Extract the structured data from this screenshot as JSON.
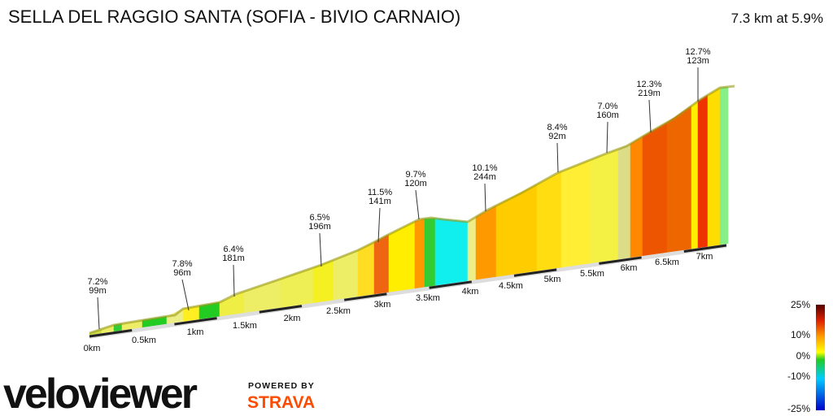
{
  "header": {
    "title": "SELLA DEL RAGGIO SANTA (SOFIA - BIVIO CARNAIO)",
    "summary": "7.3 km at 5.9%"
  },
  "annotations": [
    {
      "gradient": "7.2%",
      "length": "99m"
    },
    {
      "gradient": "7.8%",
      "length": "96m"
    },
    {
      "gradient": "6.4%",
      "length": "181m"
    },
    {
      "gradient": "6.5%",
      "length": "196m"
    },
    {
      "gradient": "11.5%",
      "length": "141m"
    },
    {
      "gradient": "9.7%",
      "length": "120m"
    },
    {
      "gradient": "10.1%",
      "length": "244m"
    },
    {
      "gradient": "8.4%",
      "length": "92m"
    },
    {
      "gradient": "7.0%",
      "length": "160m"
    },
    {
      "gradient": "12.3%",
      "length": "219m"
    },
    {
      "gradient": "12.7%",
      "length": "123m"
    }
  ],
  "distance_labels": [
    "0km",
    "0.5km",
    "1km",
    "1.5km",
    "2km",
    "2.5km",
    "3km",
    "3.5km",
    "4km",
    "4.5km",
    "5km",
    "5.5km",
    "6km",
    "6.5km",
    "7km"
  ],
  "scale_labels": [
    "25%",
    "10%",
    "0%",
    "-10%",
    "-25%"
  ],
  "branding": {
    "logo": "veloviewer",
    "powered_by": "POWERED BY",
    "partner": "STRAVA"
  }
}
